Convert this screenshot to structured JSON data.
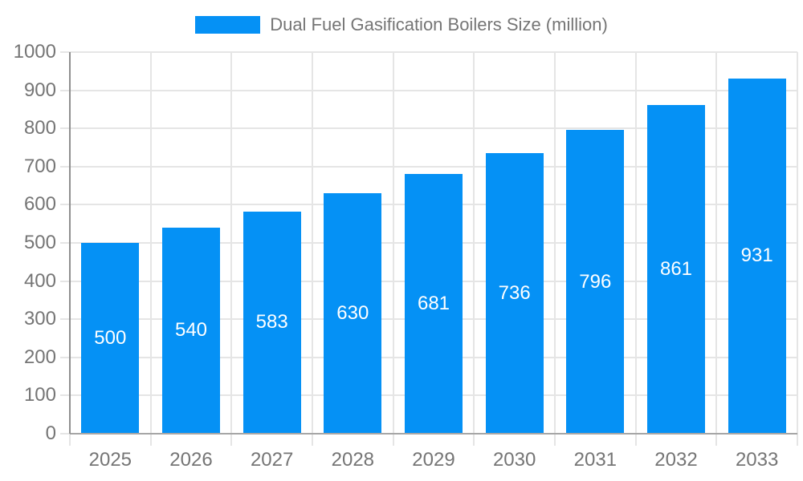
{
  "legend": {
    "label": "Dual Fuel Gasification Boilers Size (million)"
  },
  "colors": {
    "bar": "#0591f5",
    "bar_label": "#ffffff",
    "grid": "#e5e5e5",
    "axis_y": "#8f8f8f",
    "axis_x": "#a6a6a6",
    "text": "#757575",
    "background": "#ffffff"
  },
  "chart_data": {
    "type": "bar",
    "title": "Dual Fuel Gasification Boilers Size (million)",
    "categories": [
      "2025",
      "2026",
      "2027",
      "2028",
      "2029",
      "2030",
      "2031",
      "2032",
      "2033"
    ],
    "values": [
      500,
      540,
      583,
      630,
      681,
      736,
      796,
      861,
      931
    ],
    "series": [
      {
        "name": "Dual Fuel Gasification Boilers Size (million)",
        "values": [
          500,
          540,
          583,
          630,
          681,
          736,
          796,
          861,
          931
        ]
      }
    ],
    "xlabel": "",
    "ylabel": "",
    "ylim": [
      0,
      1000
    ],
    "yticks": [
      0,
      100,
      200,
      300,
      400,
      500,
      600,
      700,
      800,
      900,
      1000
    ],
    "grid": "on",
    "legend_position": "top-center",
    "bar_label_position": "inside-middle"
  }
}
